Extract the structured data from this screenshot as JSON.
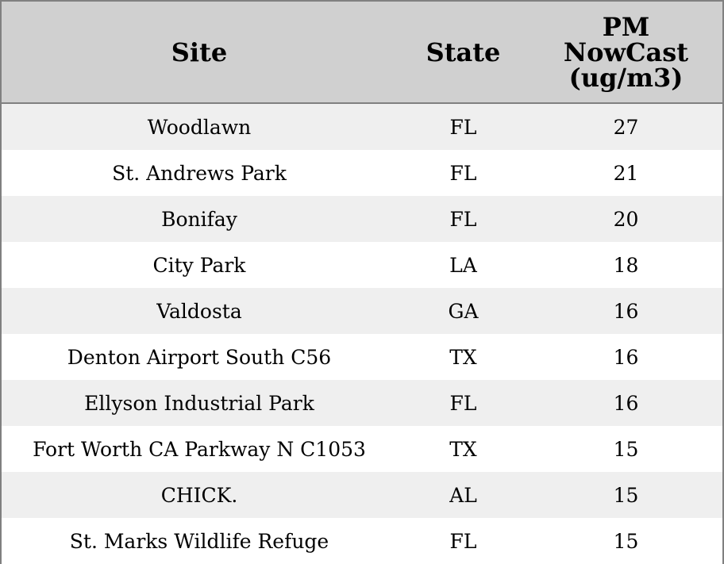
{
  "table": {
    "columns": [
      "Site",
      "State",
      "PM NowCast (ug/m3)"
    ],
    "rows": [
      [
        "Woodlawn",
        "FL",
        27
      ],
      [
        "St. Andrews Park",
        "FL",
        21
      ],
      [
        "Bonifay",
        "FL",
        20
      ],
      [
        "City Park",
        "LA",
        18
      ],
      [
        "Valdosta",
        "GA",
        16
      ],
      [
        "Denton Airport South C56",
        "TX",
        16
      ],
      [
        "Ellyson Industrial Park",
        "FL",
        16
      ],
      [
        "Fort Worth CA Parkway N C1053",
        "TX",
        15
      ],
      [
        "CHICK.",
        "AL",
        15
      ],
      [
        "St. Marks Wildlife Refuge",
        "FL",
        15
      ]
    ]
  }
}
